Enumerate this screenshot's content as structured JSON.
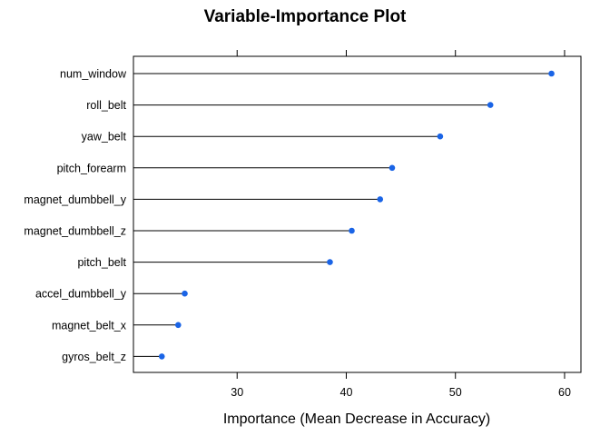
{
  "chart_data": {
    "type": "scatter",
    "subtype": "dotplot",
    "title": "Variable-Importance Plot",
    "xlabel": "Importance (Mean Decrease in Accuracy)",
    "ylabel": "",
    "xlim": [
      20.5,
      61.5
    ],
    "xticks": [
      30,
      40,
      50,
      60
    ],
    "ticks_top": true,
    "grid": false,
    "legend": "none",
    "point_color": "#1a64e6",
    "line_color": "#000000",
    "categories": [
      "num_window",
      "roll_belt",
      "yaw_belt",
      "pitch_forearm",
      "magnet_dumbbell_y",
      "magnet_dumbbell_z",
      "pitch_belt",
      "accel_dumbbell_y",
      "magnet_belt_x",
      "gyros_belt_z"
    ],
    "values": [
      58.8,
      53.2,
      48.6,
      44.2,
      43.1,
      40.5,
      38.5,
      25.2,
      24.6,
      23.1
    ]
  }
}
